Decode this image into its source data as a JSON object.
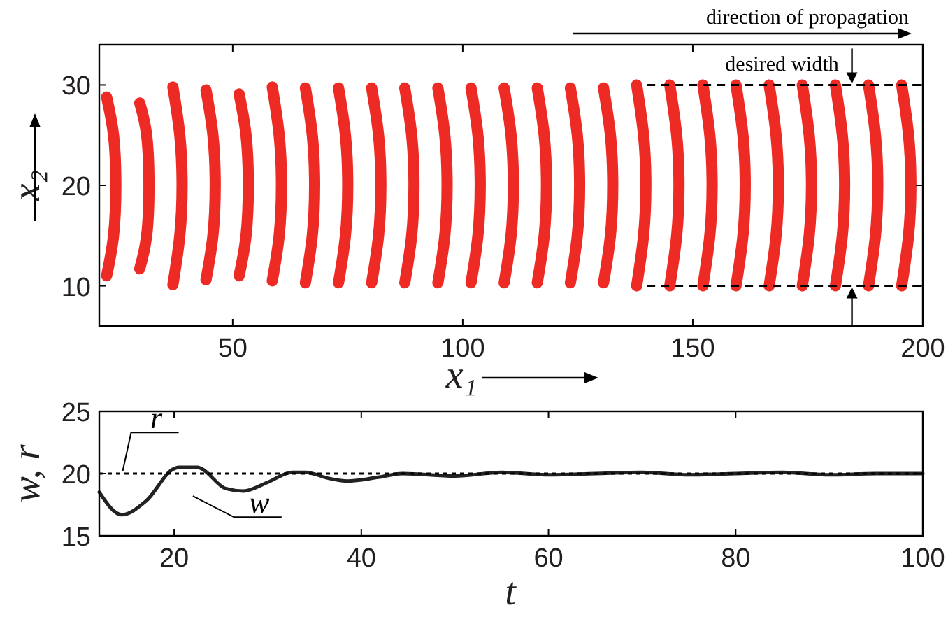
{
  "chart_data": [
    {
      "type": "line",
      "xlabel": "x₁",
      "ylabel": "x₂",
      "xlim": [
        21,
        200
      ],
      "ylim": [
        6,
        34
      ],
      "xticks": [
        50,
        100,
        150,
        200
      ],
      "yticks": [
        10,
        20,
        30
      ],
      "grid": false,
      "annotations": [
        "direction of propagation",
        {
          "text": "desired width",
          "x": 170,
          "y": 30
        }
      ],
      "series": [
        {
          "color": "#ee2a24",
          "x": [
            22.6,
            24.1,
            24.6,
            24.1,
            22.6
          ],
          "values": [
            28.8,
            25,
            20,
            15,
            11.0
          ]
        },
        {
          "color": "#ee2a24",
          "x": [
            29.8,
            31.3,
            31.8,
            31.3,
            29.8
          ],
          "values": [
            28.2,
            25,
            20,
            15,
            11.7
          ]
        },
        {
          "color": "#ee2a24",
          "x": [
            37.0,
            38.5,
            39.0,
            38.5,
            37.0
          ],
          "values": [
            29.8,
            25,
            20,
            15,
            10.1
          ]
        },
        {
          "color": "#ee2a24",
          "x": [
            44.2,
            45.7,
            46.2,
            45.7,
            44.2
          ],
          "values": [
            29.5,
            25,
            20,
            15,
            10.6
          ]
        },
        {
          "color": "#ee2a24",
          "x": [
            51.4,
            52.9,
            53.4,
            52.9,
            51.4
          ],
          "values": [
            29.1,
            25,
            20,
            15,
            11.0
          ]
        },
        {
          "color": "#ee2a24",
          "x": [
            58.6,
            60.1,
            60.6,
            60.1,
            58.6
          ],
          "values": [
            29.8,
            25,
            20,
            15,
            10.5
          ]
        },
        {
          "color": "#ee2a24",
          "x": [
            65.8,
            67.3,
            67.8,
            67.3,
            65.8
          ],
          "values": [
            29.7,
            25,
            20,
            15,
            10.3
          ]
        },
        {
          "color": "#ee2a24",
          "x": [
            73.0,
            74.5,
            75.0,
            74.5,
            73.0
          ],
          "values": [
            29.7,
            25,
            20,
            15,
            10.3
          ]
        },
        {
          "color": "#ee2a24",
          "x": [
            80.2,
            81.7,
            82.2,
            81.7,
            80.2
          ],
          "values": [
            29.7,
            25,
            20,
            15,
            10.3
          ]
        },
        {
          "color": "#ee2a24",
          "x": [
            87.4,
            88.9,
            89.4,
            88.9,
            87.4
          ],
          "values": [
            29.7,
            25,
            20,
            15,
            10.3
          ]
        },
        {
          "color": "#ee2a24",
          "x": [
            94.6,
            96.1,
            96.6,
            96.1,
            94.6
          ],
          "values": [
            29.7,
            25,
            20,
            15,
            10.3
          ]
        },
        {
          "color": "#ee2a24",
          "x": [
            101.8,
            103.3,
            103.8,
            103.3,
            101.8
          ],
          "values": [
            29.7,
            25,
            20,
            15,
            10.3
          ]
        },
        {
          "color": "#ee2a24",
          "x": [
            109.0,
            110.5,
            111.0,
            110.5,
            109.0
          ],
          "values": [
            29.7,
            25,
            20,
            15,
            10.3
          ]
        },
        {
          "color": "#ee2a24",
          "x": [
            116.2,
            117.7,
            118.2,
            117.7,
            116.2
          ],
          "values": [
            29.7,
            25,
            20,
            15,
            10.3
          ]
        },
        {
          "color": "#ee2a24",
          "x": [
            123.4,
            124.9,
            125.4,
            124.9,
            123.4
          ],
          "values": [
            29.7,
            25,
            20,
            15,
            10.3
          ]
        },
        {
          "color": "#ee2a24",
          "x": [
            130.6,
            132.1,
            132.6,
            132.1,
            130.6
          ],
          "values": [
            29.7,
            25,
            20,
            15,
            10.3
          ]
        },
        {
          "color": "#ee2a24",
          "x": [
            137.8,
            139.3,
            139.8,
            139.3,
            137.8
          ],
          "values": [
            30,
            25,
            20,
            15,
            10
          ]
        },
        {
          "color": "#ee2a24",
          "x": [
            145.0,
            146.5,
            147.0,
            146.5,
            145.0
          ],
          "values": [
            30,
            25,
            20,
            15,
            10
          ]
        },
        {
          "color": "#ee2a24",
          "x": [
            152.2,
            153.7,
            154.2,
            153.7,
            152.2
          ],
          "values": [
            30,
            25,
            20,
            15,
            10
          ]
        },
        {
          "color": "#ee2a24",
          "x": [
            159.4,
            160.9,
            161.4,
            160.9,
            159.4
          ],
          "values": [
            30,
            25,
            20,
            15,
            10
          ]
        },
        {
          "color": "#ee2a24",
          "x": [
            166.6,
            168.1,
            168.6,
            168.1,
            166.6
          ],
          "values": [
            30,
            25,
            20,
            15,
            10
          ]
        },
        {
          "color": "#ee2a24",
          "x": [
            173.8,
            175.3,
            175.8,
            175.3,
            173.8
          ],
          "values": [
            30,
            25,
            20,
            15,
            10
          ]
        },
        {
          "color": "#ee2a24",
          "x": [
            181.0,
            182.5,
            183.0,
            182.5,
            181.0
          ],
          "values": [
            30,
            25,
            20,
            15,
            10
          ]
        },
        {
          "color": "#ee2a24",
          "x": [
            188.2,
            189.7,
            190.2,
            189.7,
            188.2
          ],
          "values": [
            30,
            25,
            20,
            15,
            10
          ]
        },
        {
          "color": "#ee2a24",
          "x": [
            195.4,
            196.9,
            197.4,
            196.9,
            195.4
          ],
          "values": [
            30,
            25,
            20,
            15,
            10
          ]
        },
        {
          "color": "#000000",
          "line_style": "dashed",
          "x": [
            140,
            200
          ],
          "values": [
            30,
            30
          ]
        },
        {
          "color": "#000000",
          "line_style": "dashed",
          "x": [
            140,
            200
          ],
          "values": [
            10,
            10
          ]
        }
      ]
    },
    {
      "type": "line",
      "xlabel": "t",
      "ylabel": "w, r",
      "xlim": [
        12,
        100
      ],
      "ylim": [
        15,
        25
      ],
      "xticks": [
        20,
        40,
        60,
        80,
        100
      ],
      "yticks": [
        15,
        20,
        25
      ],
      "grid": false,
      "series": [
        {
          "name": "r",
          "color": "#000000",
          "line_style": "dotted",
          "x": [
            12,
            100
          ],
          "values": [
            20,
            20
          ]
        },
        {
          "name": "w",
          "color": "#222222",
          "line_style": "solid",
          "x": [
            12,
            14.4,
            17,
            20,
            20.5,
            22.5,
            22.9,
            25.5,
            27.4,
            30,
            32.6,
            34,
            36.6,
            38.5,
            41.8,
            44.4,
            50,
            55,
            60,
            65,
            70,
            75,
            80,
            85,
            90,
            95,
            100
          ],
          "values": [
            18.5,
            16.7,
            17.8,
            20.4,
            20.5,
            20.5,
            20.4,
            18.8,
            18.6,
            19.3,
            20.1,
            20.1,
            19.6,
            19.4,
            19.7,
            20.0,
            19.8,
            20.1,
            19.9,
            20.0,
            20.1,
            19.9,
            20.0,
            20.1,
            19.9,
            20.0,
            20.0
          ]
        }
      ]
    }
  ]
}
